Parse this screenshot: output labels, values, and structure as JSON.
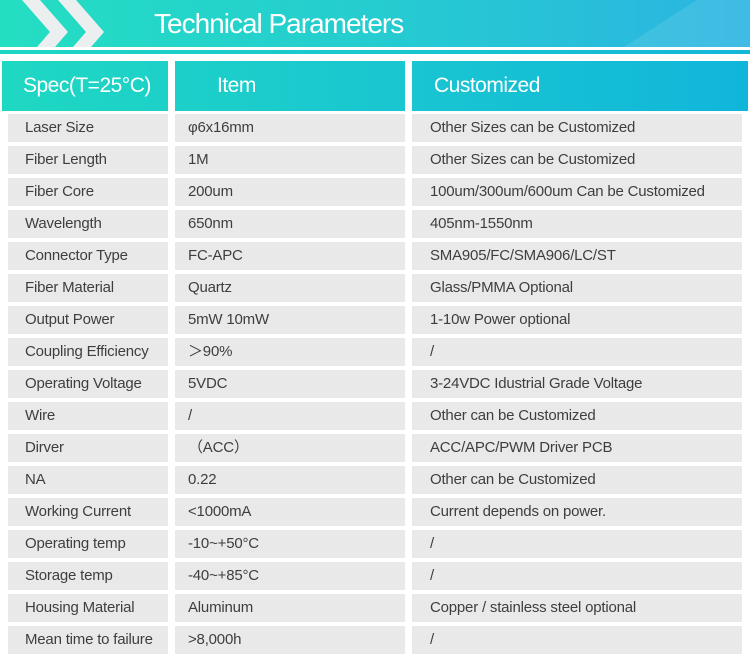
{
  "page": {
    "title": "Technical Parameters",
    "banner_icon": "double-chevron-right-icon"
  },
  "colors": {
    "banner_gradient_left": "#24dec2",
    "banner_gradient_right": "#2bb4e2",
    "header_gradient_left": "#1fd8c2",
    "header_gradient_right": "#10b6da",
    "chevron": "#eceff0",
    "row_background": "#e9e9e9",
    "row_text": "#3e3e3e",
    "header_text": "#ffffff"
  },
  "table": {
    "headers": [
      "Spec(T=25°C)",
      "Item",
      "Customized"
    ],
    "rows": [
      {
        "spec": "Laser Size",
        "item": "φ6x16mm",
        "customized": "Other Sizes can be Customized"
      },
      {
        "spec": "Fiber Length",
        "item": "1M",
        "customized": "Other Sizes can be Customized"
      },
      {
        "spec": "Fiber Core",
        "item": "200um",
        "customized": "100um/300um/600um Can be Customized"
      },
      {
        "spec": "Wavelength",
        "item": "650nm",
        "customized": "405nm-1550nm"
      },
      {
        "spec": "Connector Type",
        "item": "FC-APC",
        "customized": "SMA905/FC/SMA906/LC/ST"
      },
      {
        "spec": "Fiber Material",
        "item": "Quartz",
        "customized": "Glass/PMMA Optional"
      },
      {
        "spec": "Output Power",
        "item": "5mW 10mW",
        "customized": "1-10w Power optional"
      },
      {
        "spec": "Coupling Efficiency",
        "item": "＞90%",
        "customized": "/"
      },
      {
        "spec": "Operating Voltage",
        "item": "5VDC",
        "customized": "3-24VDC Idustrial Grade Voltage"
      },
      {
        "spec": "Wire",
        "item": "/",
        "customized": "Other can be Customized"
      },
      {
        "spec": "Dirver",
        "item": "（ACC）",
        "customized": "ACC/APC/PWM Driver PCB"
      },
      {
        "spec": "NA",
        "item": "0.22",
        "customized": "Other can be Customized"
      },
      {
        "spec": "Working Current",
        "item": "<1000mA",
        "customized": "Current depends on power."
      },
      {
        "spec": "Operating temp",
        "item": "-10~+50°C",
        "customized": "/"
      },
      {
        "spec": "Storage temp",
        "item": "-40~+85°C",
        "customized": "/"
      },
      {
        "spec": "Housing Material",
        "item": "Aluminum",
        "customized": "Copper / stainless steel optional"
      },
      {
        "spec": "Mean time to failure",
        "item": ">8,000h",
        "customized": "/"
      }
    ]
  }
}
